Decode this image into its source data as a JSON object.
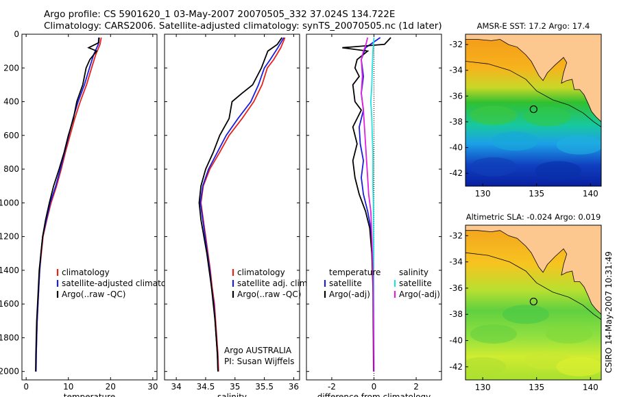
{
  "header": {
    "line1": "Argo profile: CS 5901620_1 03-May-2007 20070505_332 37.024S 134.722E",
    "line2": "Climatology: CARS2006. Satellite-adjusted climatology: synTS_20070505.nc (1d later)"
  },
  "side_label": "CSIRO 14-May-2007 10:31:49",
  "colors": {
    "climatology": "#e8201c",
    "satellite": "#1c1ce0",
    "argo": "#000000",
    "argo_adj_sal": "#e020e0",
    "satellite_sal": "#20e0e0",
    "map_land": "#fcc890"
  },
  "chart_data": [
    {
      "type": "line",
      "xlabel": "temperature",
      "xlim": [
        -1,
        31
      ],
      "ylim": [
        0,
        2050
      ],
      "y_reversed": true,
      "xticks": [
        0,
        10,
        20,
        30
      ],
      "yticks": [
        0,
        200,
        400,
        600,
        800,
        1000,
        1200,
        1400,
        1600,
        1800,
        2000
      ],
      "legend": [
        "climatology",
        "satellite-adjusted climatology",
        "Argo(..raw -QC)"
      ],
      "series": [
        {
          "name": "climatology",
          "color": "#e8201c",
          "points": [
            [
              17.8,
              20
            ],
            [
              17.5,
              60
            ],
            [
              16.5,
              120
            ],
            [
              15.5,
              200
            ],
            [
              14.3,
              300
            ],
            [
              12.8,
              400
            ],
            [
              11.5,
              500
            ],
            [
              10.4,
              600
            ],
            [
              9.3,
              700
            ],
            [
              8.3,
              800
            ],
            [
              7.2,
              900
            ],
            [
              5.9,
              1000
            ],
            [
              4.9,
              1100
            ],
            [
              4.0,
              1200
            ],
            [
              3.6,
              1300
            ],
            [
              3.2,
              1400
            ],
            [
              3.0,
              1500
            ],
            [
              2.8,
              1600
            ],
            [
              2.6,
              1700
            ],
            [
              2.5,
              1800
            ],
            [
              2.4,
              1900
            ],
            [
              2.35,
              2000
            ]
          ]
        },
        {
          "name": "satellite-adjusted climatology",
          "color": "#1c1ce0",
          "points": [
            [
              17.2,
              20
            ],
            [
              17.1,
              60
            ],
            [
              16.0,
              120
            ],
            [
              15.0,
              200
            ],
            [
              13.8,
              300
            ],
            [
              12.3,
              400
            ],
            [
              11.1,
              500
            ],
            [
              10.1,
              600
            ],
            [
              9.1,
              700
            ],
            [
              8.1,
              800
            ],
            [
              7.0,
              900
            ],
            [
              5.7,
              1000
            ],
            [
              4.8,
              1100
            ],
            [
              3.9,
              1200
            ],
            [
              3.5,
              1300
            ],
            [
              3.2,
              1400
            ],
            [
              3.0,
              1500
            ],
            [
              2.8,
              1600
            ],
            [
              2.6,
              1700
            ],
            [
              2.5,
              1800
            ],
            [
              2.4,
              1900
            ],
            [
              2.35,
              2000
            ]
          ]
        },
        {
          "name": "Argo(..raw -QC)",
          "color": "#000000",
          "points": [
            [
              17.3,
              20
            ],
            [
              17.2,
              50
            ],
            [
              16.4,
              60
            ],
            [
              14.8,
              80
            ],
            [
              16.7,
              100
            ],
            [
              15.1,
              150
            ],
            [
              14.2,
              200
            ],
            [
              13.4,
              300
            ],
            [
              12.0,
              400
            ],
            [
              11.2,
              500
            ],
            [
              10.0,
              600
            ],
            [
              9.0,
              700
            ],
            [
              7.8,
              800
            ],
            [
              6.5,
              900
            ],
            [
              5.5,
              1000
            ],
            [
              4.6,
              1100
            ],
            [
              3.9,
              1200
            ],
            [
              3.5,
              1300
            ],
            [
              3.1,
              1400
            ],
            [
              2.9,
              1500
            ],
            [
              2.7,
              1600
            ],
            [
              2.5,
              1700
            ],
            [
              2.4,
              1800
            ],
            [
              2.3,
              1900
            ],
            [
              2.25,
              2000
            ]
          ]
        }
      ]
    },
    {
      "type": "line",
      "xlabel": "salinity",
      "xlim": [
        33.8,
        36.1
      ],
      "ylim": [
        0,
        2050
      ],
      "y_reversed": true,
      "xticks": [
        34,
        34.5,
        35,
        35.5,
        36
      ],
      "yticks": [
        0,
        200,
        400,
        600,
        800,
        1000,
        1200,
        1400,
        1600,
        1800,
        2000
      ],
      "legend": [
        "climatology",
        "satellite adj. clim.",
        "Argo(..raw -QC)"
      ],
      "annotation": [
        "Argo AUSTRALIA",
        "PI: Susan Wijffels"
      ],
      "series": [
        {
          "name": "climatology",
          "color": "#e8201c",
          "points": [
            [
              35.85,
              20
            ],
            [
              35.78,
              80
            ],
            [
              35.66,
              150
            ],
            [
              35.55,
              200
            ],
            [
              35.46,
              300
            ],
            [
              35.32,
              400
            ],
            [
              35.12,
              500
            ],
            [
              34.9,
              600
            ],
            [
              34.74,
              700
            ],
            [
              34.57,
              800
            ],
            [
              34.46,
              900
            ],
            [
              34.42,
              1000
            ],
            [
              34.46,
              1100
            ],
            [
              34.5,
              1200
            ],
            [
              34.54,
              1300
            ],
            [
              34.58,
              1400
            ],
            [
              34.61,
              1500
            ],
            [
              34.65,
              1600
            ],
            [
              34.67,
              1700
            ],
            [
              34.69,
              1800
            ],
            [
              34.71,
              1900
            ],
            [
              34.72,
              2000
            ]
          ]
        },
        {
          "name": "satellite adj. clim.",
          "color": "#1c1ce0",
          "points": [
            [
              35.83,
              20
            ],
            [
              35.73,
              80
            ],
            [
              35.6,
              150
            ],
            [
              35.5,
              200
            ],
            [
              35.4,
              300
            ],
            [
              35.27,
              400
            ],
            [
              35.05,
              500
            ],
            [
              34.85,
              600
            ],
            [
              34.7,
              700
            ],
            [
              34.55,
              800
            ],
            [
              34.45,
              900
            ],
            [
              34.41,
              1000
            ],
            [
              34.45,
              1100
            ],
            [
              34.49,
              1200
            ],
            [
              34.53,
              1300
            ],
            [
              34.57,
              1400
            ],
            [
              34.6,
              1500
            ],
            [
              34.64,
              1600
            ],
            [
              34.66,
              1700
            ],
            [
              34.68,
              1800
            ],
            [
              34.7,
              1900
            ],
            [
              34.71,
              2000
            ]
          ]
        },
        {
          "name": "Argo(..raw -QC)",
          "color": "#000000",
          "points": [
            [
              35.8,
              20
            ],
            [
              35.72,
              60
            ],
            [
              35.56,
              100
            ],
            [
              35.45,
              200
            ],
            [
              35.3,
              300
            ],
            [
              35.12,
              350
            ],
            [
              34.95,
              400
            ],
            [
              34.9,
              500
            ],
            [
              34.74,
              600
            ],
            [
              34.63,
              700
            ],
            [
              34.5,
              800
            ],
            [
              34.42,
              900
            ],
            [
              34.39,
              1000
            ],
            [
              34.42,
              1100
            ],
            [
              34.47,
              1200
            ],
            [
              34.52,
              1300
            ],
            [
              34.56,
              1400
            ],
            [
              34.6,
              1500
            ],
            [
              34.63,
              1600
            ],
            [
              34.66,
              1700
            ],
            [
              34.68,
              1800
            ],
            [
              34.7,
              1900
            ],
            [
              34.71,
              2000
            ]
          ]
        }
      ]
    },
    {
      "type": "line",
      "xlabel": "difference from climatology",
      "xlim": [
        -3.2,
        3.2
      ],
      "ylim": [
        0,
        2050
      ],
      "y_reversed": true,
      "xticks": [
        -2,
        0,
        2
      ],
      "yticks": [
        0,
        200,
        400,
        600,
        800,
        1000,
        1200,
        1400,
        1600,
        1800,
        2000
      ],
      "legend_temperature": [
        "temperature",
        "satellite",
        "Argo(-adj)"
      ],
      "legend_salinity": [
        "salinity",
        "satellite",
        "Argo(-adj)"
      ],
      "series": [
        {
          "name": "temperature satellite",
          "color": "#1c1ce0",
          "points": [
            [
              0.3,
              20
            ],
            [
              -0.4,
              80
            ],
            [
              -0.6,
              150
            ],
            [
              -0.5,
              250
            ],
            [
              -0.6,
              350
            ],
            [
              -0.5,
              450
            ],
            [
              -0.7,
              550
            ],
            [
              -0.65,
              650
            ],
            [
              -0.5,
              750
            ],
            [
              -0.6,
              850
            ],
            [
              -0.5,
              950
            ],
            [
              -0.3,
              1050
            ],
            [
              -0.15,
              1150
            ],
            [
              -0.08,
              1300
            ],
            [
              -0.04,
              1500
            ],
            [
              -0.02,
              1800
            ],
            [
              0,
              2000
            ]
          ]
        },
        {
          "name": "temperature Argo(-adj)",
          "color": "#000000",
          "points": [
            [
              0.8,
              20
            ],
            [
              0.5,
              60
            ],
            [
              -1.5,
              80
            ],
            [
              -0.3,
              100
            ],
            [
              -0.8,
              150
            ],
            [
              -0.9,
              200
            ],
            [
              -0.7,
              250
            ],
            [
              -1.0,
              300
            ],
            [
              -0.9,
              400
            ],
            [
              -0.6,
              450
            ],
            [
              -1.0,
              550
            ],
            [
              -0.8,
              650
            ],
            [
              -1.0,
              750
            ],
            [
              -0.9,
              850
            ],
            [
              -0.7,
              950
            ],
            [
              -0.4,
              1050
            ],
            [
              -0.2,
              1150
            ],
            [
              -0.1,
              1300
            ],
            [
              -0.05,
              1500
            ],
            [
              -0.03,
              1800
            ],
            [
              -0.02,
              2000
            ]
          ]
        },
        {
          "name": "salinity satellite",
          "color": "#20e0e0",
          "points": [
            [
              0,
              20
            ],
            [
              -0.05,
              100
            ],
            [
              -0.08,
              200
            ],
            [
              -0.1,
              300
            ],
            [
              -0.15,
              400
            ],
            [
              -0.1,
              500
            ],
            [
              -0.08,
              600
            ],
            [
              -0.05,
              700
            ],
            [
              -0.05,
              800
            ],
            [
              -0.05,
              900
            ],
            [
              -0.03,
              1000
            ],
            [
              -0.02,
              1200
            ],
            [
              -0.01,
              1500
            ],
            [
              0,
              2000
            ]
          ]
        },
        {
          "name": "salinity Argo(-adj)",
          "color": "#e020e0",
          "points": [
            [
              -0.3,
              20
            ],
            [
              -0.4,
              70
            ],
            [
              -0.5,
              100
            ],
            [
              -0.6,
              150
            ],
            [
              -0.55,
              250
            ],
            [
              -0.6,
              350
            ],
            [
              -0.5,
              450
            ],
            [
              -0.45,
              550
            ],
            [
              -0.4,
              650
            ],
            [
              -0.35,
              750
            ],
            [
              -0.3,
              850
            ],
            [
              -0.25,
              950
            ],
            [
              -0.15,
              1050
            ],
            [
              -0.1,
              1200
            ],
            [
              -0.05,
              1400
            ],
            [
              -0.02,
              1700
            ],
            [
              0,
              2000
            ]
          ]
        }
      ]
    },
    {
      "type": "heatmap",
      "title": "AMSR-E SST: 17.2 Argo: 17.4",
      "xlim": [
        128.4,
        141
      ],
      "ylim": [
        -43,
        -31.2
      ],
      "xticks": [
        130,
        135,
        140
      ],
      "yticks": [
        -32,
        -34,
        -36,
        -38,
        -40,
        -42
      ],
      "marker": [
        134.722,
        -37.024
      ]
    },
    {
      "type": "heatmap",
      "title": "Altimetric SLA: -0.024 Argo: 0.019",
      "xlim": [
        128.4,
        141
      ],
      "ylim": [
        -43,
        -31.2
      ],
      "xticks": [
        130,
        135,
        140
      ],
      "yticks": [
        -32,
        -34,
        -36,
        -38,
        -40,
        -42
      ],
      "marker": [
        134.722,
        -37.024
      ]
    }
  ]
}
